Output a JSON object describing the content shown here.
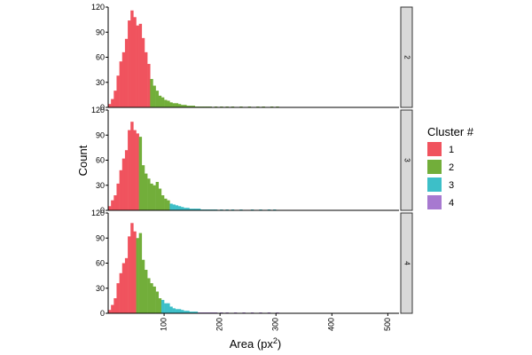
{
  "chart_data": {
    "type": "histogram",
    "facet_by": "k",
    "xlabel": "Area (px²)",
    "ylabel": "Count",
    "xlim": [
      0,
      520
    ],
    "ylim": [
      0,
      120
    ],
    "x_ticks": [
      "100",
      "200",
      "300",
      "400",
      "500"
    ],
    "y_ticks": [
      "0",
      "30",
      "60",
      "90",
      "120"
    ],
    "bin_width": 5,
    "legend": {
      "title": "Cluster #",
      "position": "right",
      "items": [
        {
          "label": "1",
          "color": "#F0535E"
        },
        {
          "label": "2",
          "color": "#72AE3A"
        },
        {
          "label": "3",
          "color": "#3DBFC8"
        },
        {
          "label": "4",
          "color": "#A779D0"
        }
      ]
    },
    "bin_starts": [
      0,
      5,
      10,
      15,
      20,
      25,
      30,
      35,
      40,
      45,
      50,
      55,
      60,
      65,
      70,
      75,
      80,
      85,
      90,
      95,
      100,
      105,
      110,
      115,
      120,
      125,
      130,
      135,
      140,
      145,
      150,
      155,
      160,
      165,
      170,
      175,
      180,
      185,
      190,
      195,
      200,
      205,
      210,
      215,
      220,
      225,
      230,
      235,
      240,
      245,
      250,
      255,
      260,
      265,
      270,
      275,
      280,
      285,
      290,
      295,
      300,
      305
    ],
    "panels": [
      {
        "strip_label": "2",
        "counts": [
          4,
          10,
          20,
          38,
          55,
          66,
          82,
          104,
          116,
          108,
          98,
          100,
          83,
          66,
          52,
          34,
          26,
          20,
          14,
          12,
          9,
          8,
          6,
          5,
          5,
          4,
          3,
          3,
          2,
          2,
          2,
          1,
          1,
          1,
          1,
          1,
          1,
          0,
          1,
          0,
          1,
          0,
          1,
          0,
          1,
          0,
          0,
          1,
          0,
          0,
          1,
          0,
          0,
          1,
          0,
          1,
          0,
          0,
          1,
          0,
          1,
          0
        ],
        "cluster": [
          1,
          1,
          1,
          1,
          1,
          1,
          1,
          1,
          1,
          1,
          1,
          1,
          1,
          1,
          1,
          2,
          2,
          2,
          2,
          2,
          2,
          2,
          2,
          2,
          2,
          2,
          2,
          2,
          2,
          2,
          2,
          2,
          2,
          2,
          2,
          2,
          2,
          2,
          2,
          2,
          2,
          2,
          2,
          2,
          2,
          2,
          2,
          2,
          2,
          2,
          2,
          2,
          2,
          2,
          2,
          2,
          2,
          2,
          2,
          2,
          2,
          2
        ]
      },
      {
        "strip_label": "3",
        "counts": [
          5,
          12,
          18,
          32,
          48,
          62,
          72,
          96,
          106,
          96,
          92,
          88,
          54,
          44,
          38,
          32,
          30,
          34,
          26,
          18,
          14,
          12,
          8,
          7,
          6,
          5,
          4,
          3,
          3,
          2,
          2,
          2,
          2,
          1,
          1,
          1,
          1,
          1,
          1,
          0,
          1,
          0,
          1,
          0,
          1,
          0,
          0,
          1,
          0,
          0,
          0,
          1,
          0,
          0,
          1,
          0,
          0,
          1,
          0,
          1,
          0,
          0
        ],
        "cluster": [
          1,
          1,
          1,
          1,
          1,
          1,
          1,
          1,
          1,
          1,
          1,
          2,
          2,
          2,
          2,
          2,
          2,
          2,
          2,
          2,
          2,
          2,
          3,
          3,
          3,
          3,
          3,
          3,
          3,
          3,
          3,
          3,
          3,
          3,
          3,
          3,
          3,
          3,
          3,
          3,
          3,
          3,
          3,
          3,
          3,
          3,
          3,
          3,
          3,
          3,
          3,
          3,
          3,
          3,
          3,
          3,
          3,
          3,
          3,
          3,
          3,
          3
        ]
      },
      {
        "strip_label": "4",
        "counts": [
          4,
          10,
          18,
          36,
          48,
          60,
          66,
          92,
          108,
          98,
          90,
          96,
          64,
          52,
          42,
          36,
          32,
          26,
          18,
          16,
          12,
          12,
          8,
          6,
          5,
          5,
          4,
          3,
          3,
          2,
          2,
          2,
          1,
          1,
          1,
          1,
          1,
          1,
          1,
          0,
          1,
          0,
          1,
          0,
          0,
          1,
          0,
          0,
          1,
          0,
          0,
          1,
          0,
          0,
          1,
          0,
          0,
          1,
          0,
          0,
          1,
          0
        ],
        "cluster": [
          1,
          1,
          1,
          1,
          1,
          1,
          1,
          1,
          1,
          1,
          2,
          2,
          2,
          2,
          2,
          2,
          2,
          2,
          2,
          3,
          3,
          3,
          3,
          3,
          3,
          3,
          3,
          3,
          3,
          3,
          3,
          3,
          4,
          4,
          4,
          4,
          4,
          4,
          4,
          4,
          4,
          4,
          4,
          4,
          4,
          4,
          4,
          4,
          4,
          4,
          4,
          4,
          4,
          4,
          4,
          4,
          4,
          4,
          4,
          4,
          4,
          4
        ]
      }
    ]
  }
}
